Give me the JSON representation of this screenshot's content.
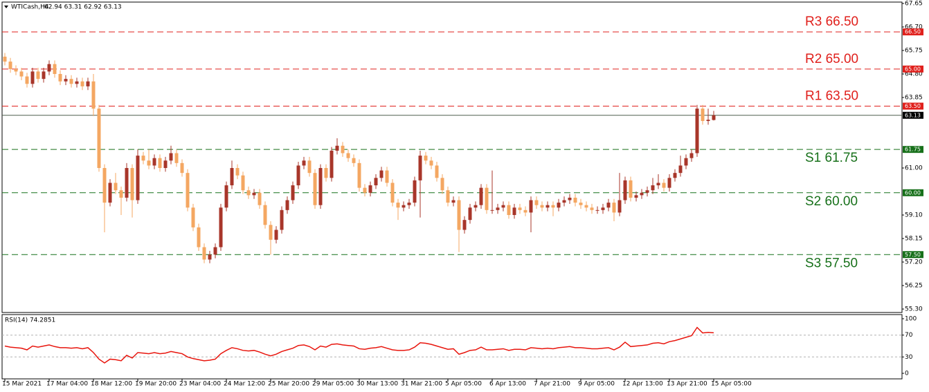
{
  "chart_data": {
    "type": "candlestick",
    "title": "WTICash,H4",
    "ohlc_label": "62.94 63.31 62.92 63.13",
    "categories": [
      "15 Mar 2021",
      null,
      null,
      null,
      null,
      null,
      null,
      null,
      "17 Mar 04:00",
      null,
      null,
      null,
      null,
      null,
      null,
      null,
      "18 Mar 12:00",
      null,
      null,
      null,
      null,
      null,
      null,
      null,
      "19 Mar 20:00",
      null,
      null,
      null,
      null,
      null,
      null,
      null,
      "23 Mar 04:00",
      null,
      null,
      null,
      null,
      null,
      null,
      null,
      "24 Mar 12:00",
      null,
      null,
      null,
      null,
      null,
      null,
      null,
      "25 Mar 20:00",
      null,
      null,
      null,
      null,
      null,
      null,
      null,
      "29 Mar 05:00",
      null,
      null,
      null,
      null,
      null,
      null,
      null,
      "30 Mar 13:00",
      null,
      null,
      null,
      null,
      null,
      null,
      null,
      "31 Mar 21:00",
      null,
      null,
      null,
      null,
      null,
      null,
      null,
      "5 Apr 05:00",
      null,
      null,
      null,
      null,
      null,
      null,
      null,
      "6 Apr 13:00",
      null,
      null,
      null,
      null,
      null,
      null,
      null,
      "7 Apr 21:00",
      null,
      null,
      null,
      null,
      null,
      null,
      null,
      "9 Apr 05:00",
      null,
      null,
      null,
      null,
      null,
      null,
      null,
      "12 Apr 13:00",
      null,
      null,
      null,
      null,
      null,
      null,
      null,
      "13 Apr 21:00",
      null,
      null,
      null,
      null,
      null,
      null,
      null,
      "15 Apr 05:00"
    ],
    "open": [
      65.5,
      65.3,
      65.0,
      64.9,
      64.7,
      64.4,
      64.9,
      64.6,
      64.9,
      65.2,
      64.8,
      64.5,
      64.6,
      64.4,
      64.5,
      64.3,
      64.5,
      63.4,
      61.0,
      59.6,
      60.4,
      60.1,
      59.8,
      61.0,
      59.7,
      61.5,
      61.3,
      61.1,
      61.4,
      61.0,
      61.3,
      61.6,
      61.2,
      60.8,
      59.4,
      58.6,
      57.8,
      57.3,
      57.5,
      57.8,
      59.4,
      60.3,
      61.0,
      60.7,
      60.1,
      59.9,
      60.0,
      59.5,
      58.7,
      58.1,
      58.5,
      59.3,
      59.7,
      60.3,
      61.1,
      61.3,
      60.8,
      59.5,
      61.0,
      60.6,
      61.7,
      61.9,
      61.6,
      61.4,
      61.2,
      60.2,
      60.0,
      60.3,
      60.6,
      60.9,
      60.4,
      59.6,
      59.4,
      59.5,
      59.6,
      60.5,
      61.5,
      61.3,
      61.1,
      60.6,
      60.1,
      59.6,
      59.7,
      58.5,
      58.9,
      59.4,
      59.5,
      60.2,
      59.3,
      59.3,
      59.4,
      59.5,
      59.1,
      59.4,
      59.3,
      59.2,
      59.7,
      59.5,
      59.4,
      59.5,
      59.4,
      59.6,
      59.7,
      59.8,
      59.6,
      59.5,
      59.4,
      59.3,
      59.3,
      59.4,
      59.6,
      59.2,
      59.7,
      60.5,
      59.8,
      59.9,
      60.0,
      60.1,
      60.3,
      60.4,
      60.2,
      60.6,
      60.8,
      61.1,
      61.4,
      61.6,
      63.4,
      62.9,
      62.94
    ],
    "high": [
      65.65,
      65.45,
      65.15,
      65.05,
      64.85,
      65.05,
      65.05,
      65.05,
      65.35,
      65.35,
      64.95,
      64.75,
      64.75,
      64.65,
      64.65,
      64.65,
      64.8,
      63.55,
      61.15,
      60.55,
      60.8,
      60.25,
      61.2,
      61.15,
      61.75,
      61.65,
      61.75,
      61.55,
      61.55,
      61.45,
      61.9,
      61.75,
      61.35,
      60.95,
      59.55,
      58.75,
      57.95,
      57.65,
      57.95,
      59.55,
      60.45,
      61.3,
      61.15,
      60.85,
      60.25,
      60.15,
      60.15,
      59.65,
      58.85,
      58.65,
      59.45,
      59.85,
      60.45,
      61.25,
      61.45,
      61.45,
      60.95,
      61.15,
      61.15,
      61.85,
      62.2,
      62.05,
      61.75,
      61.55,
      61.35,
      60.35,
      60.45,
      60.75,
      61.05,
      61.05,
      60.55,
      59.75,
      59.65,
      59.75,
      60.65,
      61.7,
      61.65,
      61.45,
      61.25,
      60.75,
      60.25,
      59.85,
      59.85,
      59.05,
      59.55,
      59.65,
      60.35,
      60.35,
      60.9,
      59.55,
      59.65,
      59.65,
      59.55,
      59.55,
      59.45,
      59.85,
      59.85,
      59.65,
      59.65,
      59.65,
      59.75,
      59.85,
      59.95,
      59.95,
      59.75,
      59.65,
      59.55,
      59.45,
      59.55,
      59.75,
      59.75,
      60.8,
      60.65,
      60.65,
      60.05,
      60.15,
      60.25,
      60.6,
      60.75,
      60.55,
      60.75,
      60.95,
      61.5,
      61.55,
      61.75,
      63.55,
      63.55,
      63.4,
      63.31
    ],
    "low": [
      65.15,
      64.85,
      64.75,
      64.55,
      64.25,
      64.25,
      64.45,
      64.45,
      64.75,
      64.65,
      64.35,
      64.35,
      64.25,
      64.25,
      64.15,
      64.15,
      63.1,
      60.85,
      58.4,
      59.45,
      59.95,
      59.1,
      59.65,
      59.0,
      59.55,
      61.15,
      60.95,
      60.95,
      60.85,
      60.85,
      61.15,
      61.05,
      60.65,
      59.25,
      58.45,
      57.65,
      57.15,
      57.15,
      57.35,
      57.65,
      59.25,
      60.15,
      60.55,
      59.95,
      59.75,
      59.75,
      59.35,
      58.55,
      57.5,
      57.95,
      58.35,
      59.15,
      59.55,
      60.15,
      60.95,
      60.65,
      59.35,
      59.35,
      60.45,
      60.45,
      61.55,
      61.45,
      61.25,
      61.05,
      60.05,
      59.85,
      59.85,
      60.15,
      60.45,
      60.25,
      59.45,
      58.9,
      59.25,
      59.35,
      59.45,
      59.0,
      61.15,
      60.95,
      60.45,
      59.95,
      59.45,
      59.45,
      57.6,
      58.35,
      58.75,
      59.25,
      59.35,
      59.15,
      59.15,
      59.15,
      59.25,
      58.95,
      58.95,
      59.15,
      59.05,
      58.4,
      59.35,
      59.25,
      59.25,
      59.05,
      59.25,
      59.45,
      59.55,
      59.45,
      59.35,
      59.25,
      59.15,
      59.15,
      59.15,
      59.25,
      58.85,
      59.05,
      59.55,
      59.65,
      59.65,
      59.75,
      59.85,
      59.95,
      60.15,
      60.05,
      60.05,
      60.45,
      60.65,
      60.95,
      61.25,
      61.45,
      62.75,
      62.75,
      62.92
    ],
    "close": [
      65.3,
      65.0,
      64.9,
      64.7,
      64.4,
      64.9,
      64.6,
      64.9,
      65.2,
      64.8,
      64.5,
      64.6,
      64.4,
      64.5,
      64.3,
      64.5,
      63.4,
      61.0,
      59.6,
      60.4,
      60.1,
      59.8,
      61.0,
      59.7,
      61.5,
      61.3,
      61.1,
      61.4,
      61.0,
      61.3,
      61.6,
      61.2,
      60.8,
      59.4,
      58.6,
      57.8,
      57.3,
      57.5,
      57.8,
      59.4,
      60.3,
      61.0,
      60.7,
      60.1,
      59.9,
      60.0,
      59.5,
      58.7,
      58.1,
      58.5,
      59.3,
      59.7,
      60.3,
      61.1,
      61.3,
      60.8,
      59.5,
      61.0,
      60.6,
      61.7,
      61.9,
      61.6,
      61.4,
      61.2,
      60.2,
      60.0,
      60.3,
      60.6,
      60.9,
      60.4,
      59.6,
      59.4,
      59.5,
      59.6,
      60.5,
      61.5,
      61.3,
      61.1,
      60.6,
      60.1,
      59.6,
      59.7,
      58.5,
      58.9,
      59.4,
      59.5,
      60.2,
      59.3,
      59.3,
      59.4,
      59.5,
      59.1,
      59.4,
      59.3,
      59.2,
      59.7,
      59.5,
      59.4,
      59.5,
      59.4,
      59.6,
      59.7,
      59.8,
      59.6,
      59.5,
      59.4,
      59.3,
      59.3,
      59.4,
      59.6,
      59.2,
      59.7,
      60.5,
      59.8,
      59.9,
      60.0,
      60.1,
      60.3,
      60.4,
      60.2,
      60.6,
      60.8,
      61.1,
      61.4,
      61.6,
      63.4,
      62.9,
      62.95,
      63.13
    ],
    "up_color": "#a8362a",
    "down_color": "#f4a762",
    "ylim": [
      55.3,
      67.65
    ],
    "yticks": [
      67.65,
      {
        "value": 66.7,
        "label": "66.70"
      },
      65.75,
      {
        "value": 64.8,
        "label": "64.80"
      },
      63.85,
      {
        "value": 61,
        "label": "61.00"
      },
      {
        "value": 59.1,
        "label": "59.10"
      },
      58.15,
      {
        "value": 57.2,
        "label": "57.20"
      },
      56.25,
      {
        "value": 55.3,
        "label": "55.30"
      }
    ],
    "levels": [
      {
        "label": "R3 66.50",
        "value": 66.5,
        "price_label": "66.50",
        "color": "#e0201c"
      },
      {
        "label": "R2 65.00",
        "value": 65,
        "price_label": "65.00",
        "color": "#e0201c"
      },
      {
        "label": "R1 63.50",
        "value": 63.5,
        "price_label": "63.50",
        "color": "#e0201c"
      },
      {
        "label": "S1 61.75",
        "value": 61.75,
        "price_label": "61.75",
        "color": "#17701a"
      },
      {
        "label": "S2 60.00",
        "value": 60,
        "price_label": "60.00",
        "color": "#17701a"
      },
      {
        "label": "S3 57.50",
        "value": 57.5,
        "price_label": "57.50",
        "color": "#17701a"
      }
    ],
    "last_price": {
      "value": 63.13,
      "label": "63.13"
    },
    "rsi": {
      "title": "RSI(14) 74.2851",
      "color": "#e8140c",
      "ylim": [
        0,
        100
      ],
      "yticks": [
        100,
        70,
        30,
        0
      ],
      "levels": [
        70,
        30
      ],
      "values": [
        50,
        48,
        47,
        46,
        43,
        50,
        48,
        50,
        52,
        49,
        47,
        47,
        46,
        47,
        45,
        47,
        38,
        26,
        19,
        26,
        25,
        23,
        33,
        28,
        38,
        37,
        36,
        38,
        36,
        37,
        40,
        38,
        36,
        30,
        27,
        25,
        23,
        24,
        26,
        36,
        42,
        47,
        45,
        42,
        41,
        42,
        39,
        35,
        32,
        35,
        40,
        43,
        46,
        51,
        52,
        49,
        43,
        50,
        48,
        53,
        54,
        52,
        51,
        50,
        45,
        44,
        46,
        47,
        49,
        46,
        43,
        42,
        42,
        43,
        48,
        56,
        55,
        53,
        50,
        47,
        44,
        45,
        35,
        38,
        42,
        43,
        48,
        43,
        43,
        44,
        45,
        42,
        44,
        44,
        43,
        47,
        46,
        45,
        46,
        45,
        47,
        48,
        49,
        47,
        47,
        46,
        45,
        45,
        46,
        47,
        43,
        48,
        57,
        49,
        50,
        51,
        52,
        55,
        56,
        54,
        58,
        60,
        63,
        66,
        69,
        84,
        74,
        75,
        74.2851
      ]
    }
  }
}
